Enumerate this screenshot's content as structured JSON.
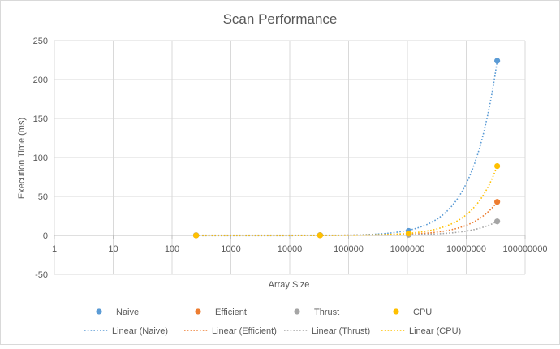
{
  "chart_data": {
    "type": "scatter",
    "title": "Scan Performance",
    "xlabel": "Array Size",
    "ylabel": "Execution Time (ms)",
    "x_scale": "log",
    "xlim": [
      1,
      100000000
    ],
    "ylim": [
      -50,
      250
    ],
    "x_ticks": [
      "1",
      "10",
      "100",
      "1000",
      "10000",
      "100000",
      "1000000",
      "10000000",
      "100000000"
    ],
    "y_ticks": [
      "-50",
      "0",
      "50",
      "100",
      "150",
      "200",
      "250"
    ],
    "grid": true,
    "legend_position": "bottom",
    "series": [
      {
        "name": "Naive",
        "color": "#5b9bd5",
        "x": [
          256,
          32768,
          1048576,
          33554432
        ],
        "y": [
          0.05,
          0.3,
          5.8,
          224
        ]
      },
      {
        "name": "Efficient",
        "color": "#ed7d31",
        "x": [
          256,
          32768,
          1048576,
          33554432
        ],
        "y": [
          0.1,
          0.2,
          1.6,
          43
        ]
      },
      {
        "name": "Thrust",
        "color": "#a5a5a5",
        "x": [
          256,
          32768,
          1048576,
          33554432
        ],
        "y": [
          0.3,
          0.4,
          0.8,
          18
        ]
      },
      {
        "name": "CPU",
        "color": "#ffc000",
        "x": [
          256,
          32768,
          1048576,
          33554432
        ],
        "y": [
          0.0,
          0.1,
          2.5,
          89
        ]
      }
    ],
    "trendlines": [
      {
        "name": "Linear (Naive)",
        "series": "Naive",
        "color": "#5b9bd5"
      },
      {
        "name": "Linear (Efficient)",
        "series": "Efficient",
        "color": "#ed7d31"
      },
      {
        "name": "Linear (Thrust)",
        "series": "Thrust",
        "color": "#a5a5a5"
      },
      {
        "name": "Linear (CPU)",
        "series": "CPU",
        "color": "#ffc000"
      }
    ]
  }
}
